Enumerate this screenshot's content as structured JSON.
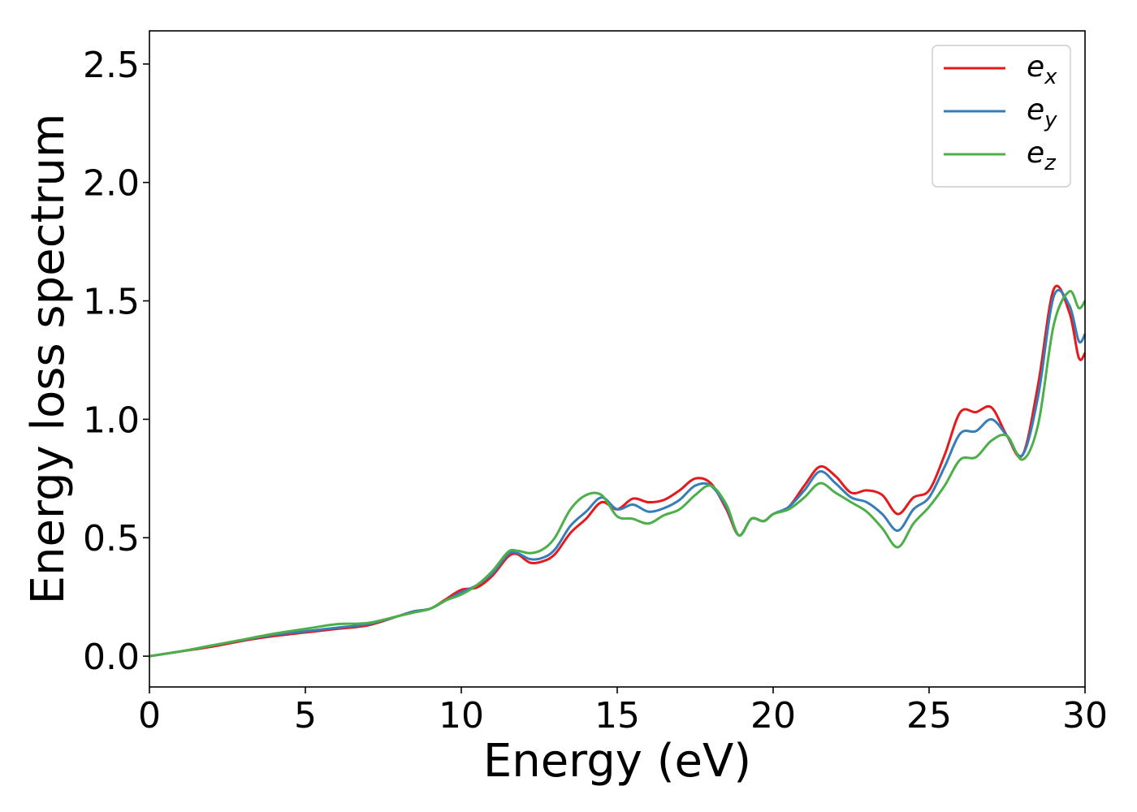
{
  "chart_data": {
    "type": "line",
    "xlabel": "Energy (eV)",
    "ylabel": "Energy loss spectrum",
    "xlim": [
      0,
      30
    ],
    "ylim": [
      -0.13,
      2.64
    ],
    "xticks": [
      0,
      5,
      10,
      15,
      20,
      25,
      30
    ],
    "yticks": [
      0.0,
      0.5,
      1.0,
      1.5,
      2.0,
      2.5
    ],
    "xtick_labels": [
      "0",
      "5",
      "10",
      "15",
      "20",
      "25",
      "30"
    ],
    "ytick_labels": [
      "0.0",
      "0.5",
      "1.0",
      "1.5",
      "2.0",
      "2.5"
    ],
    "grid": false,
    "legend_position": "top-right",
    "series": [
      {
        "name": "e_x",
        "label_base": "e",
        "label_sub": "x",
        "color": "#e41a1c",
        "x": [
          0,
          1,
          2,
          3,
          4,
          5,
          6,
          7,
          8,
          8.5,
          9,
          9.5,
          10,
          10.5,
          11,
          11.5,
          11.8,
          12.2,
          12.6,
          13,
          13.5,
          14,
          14.5,
          15,
          15.5,
          16,
          16.5,
          17,
          17.5,
          18,
          18.5,
          18.9,
          19.3,
          19.7,
          20,
          20.5,
          21,
          21.5,
          22,
          22.5,
          23,
          23.5,
          24,
          24.5,
          25,
          25.5,
          26,
          26.5,
          27,
          27.5,
          28,
          28.5,
          29,
          29.5,
          29.8,
          30
        ],
        "y": [
          0.0,
          0.02,
          0.04,
          0.065,
          0.085,
          0.1,
          0.115,
          0.13,
          0.17,
          0.19,
          0.2,
          0.24,
          0.28,
          0.29,
          0.34,
          0.42,
          0.43,
          0.395,
          0.4,
          0.43,
          0.52,
          0.58,
          0.65,
          0.62,
          0.665,
          0.65,
          0.66,
          0.7,
          0.75,
          0.73,
          0.62,
          0.51,
          0.58,
          0.57,
          0.6,
          0.63,
          0.72,
          0.8,
          0.76,
          0.69,
          0.7,
          0.68,
          0.6,
          0.67,
          0.7,
          0.85,
          1.03,
          1.03,
          1.05,
          0.93,
          0.85,
          1.15,
          1.55,
          1.45,
          1.26,
          1.28
        ]
      },
      {
        "name": "e_y",
        "label_base": "e",
        "label_sub": "y",
        "color": "#377eb8",
        "x": [
          0,
          1,
          2,
          3,
          4,
          5,
          6,
          7,
          8,
          8.5,
          9,
          9.5,
          10,
          10.5,
          11,
          11.5,
          11.8,
          12.2,
          12.6,
          13,
          13.5,
          14,
          14.5,
          15,
          15.5,
          16,
          16.5,
          17,
          17.5,
          18,
          18.5,
          18.9,
          19.3,
          19.7,
          20,
          20.5,
          21,
          21.5,
          22,
          22.5,
          23,
          23.5,
          24,
          24.5,
          25,
          25.5,
          26,
          26.5,
          27,
          27.5,
          28,
          28.5,
          29,
          29.5,
          29.8,
          30
        ],
        "y": [
          0.0,
          0.02,
          0.045,
          0.068,
          0.09,
          0.105,
          0.12,
          0.135,
          0.17,
          0.19,
          0.2,
          0.235,
          0.27,
          0.3,
          0.35,
          0.43,
          0.435,
          0.41,
          0.415,
          0.45,
          0.55,
          0.61,
          0.67,
          0.62,
          0.64,
          0.61,
          0.625,
          0.66,
          0.72,
          0.72,
          0.63,
          0.51,
          0.58,
          0.57,
          0.6,
          0.63,
          0.7,
          0.78,
          0.73,
          0.67,
          0.65,
          0.6,
          0.53,
          0.62,
          0.67,
          0.8,
          0.94,
          0.95,
          1.0,
          0.93,
          0.85,
          1.1,
          1.52,
          1.48,
          1.33,
          1.36
        ]
      },
      {
        "name": "e_z",
        "label_base": "e",
        "label_sub": "z",
        "color": "#4daf4a",
        "x": [
          0,
          1,
          2,
          3,
          4,
          5,
          6,
          7,
          8,
          8.5,
          9,
          9.5,
          10,
          10.5,
          11,
          11.5,
          11.8,
          12.2,
          12.6,
          13,
          13.5,
          14,
          14.5,
          15,
          15.5,
          16,
          16.5,
          17,
          17.5,
          18,
          18.5,
          18.9,
          19.3,
          19.7,
          20,
          20.5,
          21,
          21.5,
          22,
          22.5,
          23,
          23.5,
          24,
          24.5,
          25,
          25.5,
          26,
          26.5,
          27,
          27.5,
          28,
          28.5,
          29,
          29.5,
          29.8,
          30
        ],
        "y": [
          0.0,
          0.02,
          0.045,
          0.07,
          0.095,
          0.115,
          0.135,
          0.14,
          0.17,
          0.185,
          0.2,
          0.235,
          0.26,
          0.3,
          0.36,
          0.44,
          0.445,
          0.435,
          0.45,
          0.5,
          0.62,
          0.68,
          0.68,
          0.59,
          0.58,
          0.56,
          0.595,
          0.62,
          0.68,
          0.72,
          0.64,
          0.51,
          0.58,
          0.57,
          0.6,
          0.62,
          0.67,
          0.73,
          0.69,
          0.65,
          0.61,
          0.54,
          0.46,
          0.56,
          0.63,
          0.72,
          0.83,
          0.84,
          0.91,
          0.93,
          0.83,
          0.98,
          1.4,
          1.54,
          1.47,
          1.5
        ]
      }
    ]
  }
}
